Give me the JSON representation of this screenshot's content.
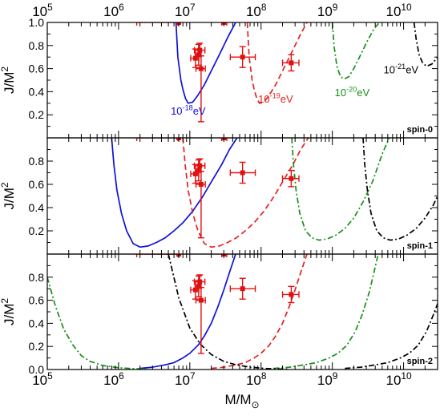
{
  "chart_data": {
    "type": "line",
    "layout": "three vertically stacked panels sharing a logarithmic x axis",
    "x_scale": "log",
    "xlim": [
      100000,
      30000000000
    ],
    "xlabel_base": "M/M",
    "xlabel_sub": "⊙",
    "ylabel_base": "J/M",
    "ylabel_sup": "2",
    "top_axis_labels": true,
    "x_tick_labels": [
      {
        "x": 100000,
        "exp": "5"
      },
      {
        "x": 1000000,
        "exp": "6"
      },
      {
        "x": 10000000,
        "exp": "7"
      },
      {
        "x": 100000000,
        "exp": "8"
      },
      {
        "x": 1000000000,
        "exp": "9"
      },
      {
        "x": 10000000000,
        "exp": "10"
      }
    ],
    "colors": {
      "1e-18": "#1010d8",
      "1e-19": "#e82020",
      "1e-20": "#189018",
      "1e-21": "#000000",
      "points": "#e01010"
    },
    "data_points": [
      {
        "x": 7000000,
        "y": 1.0,
        "xerr_low": 1800000,
        "xerr_high": 6800000
      },
      {
        "x": 30000000,
        "y": 1.0,
        "xerr_low": 28000000,
        "xerr_high": 33000000
      },
      {
        "x": 12000000,
        "y": 0.69,
        "xerr_low": 10300000,
        "xerr_high": 13400000,
        "yerr_low": 0.61,
        "yerr_high": 0.77
      },
      {
        "x": 13300000,
        "y": 0.72,
        "xerr_low": 11900000,
        "xerr_high": 14400000,
        "yerr_low": 0.63,
        "yerr_high": 0.81
      },
      {
        "x": 13800000,
        "y": 0.76,
        "xerr_low": 11600000,
        "xerr_high": 16300000,
        "yerr_low": 0.71,
        "yerr_high": 0.82
      },
      {
        "x": 14400000,
        "y": 0.6,
        "xerr_low": 12200000,
        "xerr_high": 16500000,
        "yerr_low": 0.14,
        "yerr_high": 0.71
      },
      {
        "x": 55000000,
        "y": 0.7,
        "xerr_low": 37000000,
        "xerr_high": 83000000,
        "yerr_low": 0.61,
        "yerr_high": 0.79
      },
      {
        "x": 265000000,
        "y": 0.65,
        "xerr_low": 200000000,
        "xerr_high": 340000000,
        "yerr_low": 0.58,
        "yerr_high": 0.72
      }
    ],
    "panels": [
      {
        "label": "spin-0",
        "ylim": [
          0,
          1.0
        ],
        "y_ticks": [
          0.2,
          0.4,
          0.6,
          0.8,
          1.0
        ],
        "y_tick_labels": [
          "0.2",
          "0.4",
          "0.6",
          "0.8",
          "1.0"
        ],
        "curve_labels": [
          {
            "mass": "1e-18",
            "base": "10",
            "exp": "-18",
            "unit": "eV",
            "x": 9500000,
            "y": 0.2
          },
          {
            "mass": "1e-19",
            "base": "10",
            "exp": "-19",
            "unit": "eV",
            "x": 160000000,
            "y": 0.305
          },
          {
            "mass": "1e-20",
            "base": "10",
            "exp": "-20",
            "unit": "eV",
            "x": 1900000000,
            "y": 0.36
          },
          {
            "mass": "1e-21",
            "base": "10",
            "exp": "-21",
            "unit": "eV",
            "x": 9200000000,
            "y": 0.56
          }
        ],
        "series": [
          {
            "mass": "1e-18",
            "style": "solid",
            "x": [
              6400000,
              6800000,
              7500000,
              8000000,
              8700000,
              9500000,
              11000000,
              13000000,
              16000000,
              20000000,
              26000000,
              34000000,
              44000000
            ],
            "y": [
              1.0,
              0.7,
              0.5,
              0.42,
              0.34,
              0.3,
              0.31,
              0.37,
              0.46,
              0.58,
              0.72,
              0.87,
              1.0
            ]
          },
          {
            "mass": "1e-19",
            "style": "dash",
            "x": [
              64000000,
              68000000,
              75000000,
              80000000,
              87000000,
              95000000,
              110000000,
              130000000,
              160000000,
              200000000,
              260000000,
              340000000,
              440000000
            ],
            "y": [
              1.0,
              0.7,
              0.5,
              0.42,
              0.34,
              0.3,
              0.31,
              0.37,
              0.46,
              0.58,
              0.72,
              0.87,
              1.0
            ]
          },
          {
            "mass": "1e-20",
            "style": "dashdot",
            "x": [
              1000000000,
              1060000000,
              1160000000,
              1300000000,
              1460000000,
              1700000000,
              2000000000,
              2450000000,
              3100000000,
              3900000000,
              4600000000
            ],
            "y": [
              1.0,
              0.79,
              0.62,
              0.53,
              0.51,
              0.53,
              0.6,
              0.71,
              0.84,
              0.95,
              1.0
            ]
          },
          {
            "mass": "1e-21",
            "style": "dashdot",
            "x": [
              14000000000,
              15000000000,
              16500000000,
              18500000000,
              21000000000,
              25000000000,
              30000000000
            ],
            "y": [
              1.0,
              0.86,
              0.72,
              0.65,
              0.62,
              0.64,
              0.7
            ]
          }
        ]
      },
      {
        "label": "spin-1",
        "ylim": [
          0,
          1.0
        ],
        "y_ticks": [
          0.2,
          0.4,
          0.6,
          0.8
        ],
        "y_tick_labels": [
          "0.2",
          "0.4",
          "0.6",
          "0.8"
        ],
        "curve_labels": [],
        "series": [
          {
            "mass": "1e-18",
            "style": "solid",
            "x": [
              800000,
              860000,
              950000,
              1100000,
              1300000,
              1600000,
              2000000,
              2600000,
              3400000,
              4500000,
              6000000,
              8000000,
              11000000,
              15000000,
              20000000,
              28000000,
              36000000,
              46000000
            ],
            "y": [
              1.0,
              0.77,
              0.55,
              0.35,
              0.2,
              0.09,
              0.06,
              0.07,
              0.1,
              0.14,
              0.2,
              0.27,
              0.37,
              0.49,
              0.62,
              0.77,
              0.9,
              1.0
            ]
          },
          {
            "mass": "1e-19",
            "style": "dash",
            "x": [
              8000000,
              8600000,
              9500000,
              11000000,
              13000000,
              16000000,
              20000000,
              26000000,
              34000000,
              45000000,
              60000000,
              80000000,
              110000000,
              150000000,
              200000000,
              280000000,
              360000000,
              460000000
            ],
            "y": [
              1.0,
              0.77,
              0.55,
              0.35,
              0.2,
              0.09,
              0.06,
              0.07,
              0.1,
              0.14,
              0.2,
              0.27,
              0.37,
              0.49,
              0.62,
              0.77,
              0.9,
              1.0
            ]
          },
          {
            "mass": "1e-20",
            "style": "dashdot",
            "x": [
              270000000,
              285000000,
              310000000,
              350000000,
              420000000,
              520000000,
              650000000,
              850000000,
              1100000000,
              1500000000,
              2000000000,
              2700000000,
              3700000000,
              5000000000,
              6300000000
            ],
            "y": [
              1.0,
              0.77,
              0.55,
              0.35,
              0.2,
              0.14,
              0.12,
              0.13,
              0.16,
              0.22,
              0.31,
              0.45,
              0.63,
              0.86,
              1.0
            ]
          },
          {
            "mass": "1e-21",
            "style": "dashdot",
            "x": [
              2700000000,
              2850000000,
              3100000000,
              3500000000,
              4200000000,
              5200000000,
              6500000000,
              8500000000,
              11000000000,
              15000000000,
              20000000000,
              26000000000,
              30000000000
            ],
            "y": [
              1.0,
              0.77,
              0.55,
              0.35,
              0.2,
              0.14,
              0.12,
              0.13,
              0.16,
              0.22,
              0.31,
              0.42,
              0.5
            ]
          }
        ]
      },
      {
        "label": "spin-2",
        "ylim": [
          0,
          1.0
        ],
        "y_ticks": [
          0.2,
          0.4,
          0.6,
          0.8
        ],
        "y_tick_labels": [
          "0.2",
          "0.4",
          "0.6",
          "0.8"
        ],
        "curve_labels": [],
        "series": [
          {
            "mass": "1e-18",
            "style": "solid",
            "x": [
              2000000,
              3000000,
              4500000,
              6000000,
              8000000,
              10000000,
              13000000,
              16000000,
              20000000,
              25000000,
              30000000,
              36000000,
              44000000
            ],
            "y": [
              0.01,
              0.02,
              0.04,
              0.06,
              0.1,
              0.14,
              0.21,
              0.29,
              0.4,
              0.55,
              0.69,
              0.84,
              1.0
            ]
          },
          {
            "mass": "1e-19",
            "style": "dash",
            "x": [
              20000000,
              30000000,
              45000000,
              60000000,
              80000000,
              100000000,
              130000000,
              160000000,
              200000000,
              250000000,
              300000000,
              360000000,
              440000000
            ],
            "y": [
              0.01,
              0.02,
              0.04,
              0.06,
              0.1,
              0.14,
              0.21,
              0.29,
              0.4,
              0.55,
              0.69,
              0.84,
              1.0
            ]
          },
          {
            "mass": "1e-20",
            "style": "dashdot",
            "x": [
              100000,
              130000,
              170000,
              230000,
              300000,
              400000,
              600000,
              1000000,
              1500000,
              2500000
            ],
            "y": [
              0.8,
              0.55,
              0.35,
              0.21,
              0.12,
              0.07,
              0.035,
              0.015,
              0.008,
              0.004
            ]
          },
          {
            "mass": "1e-20",
            "style": "dashdot",
            "x": [
              150000000,
              250000000,
              400000000,
              600000000,
              900000000,
              1200000000,
              1600000000,
              2100000000,
              2600000000,
              3300000000,
              4400000000
            ],
            "y": [
              0.01,
              0.02,
              0.04,
              0.06,
              0.1,
              0.14,
              0.21,
              0.33,
              0.47,
              0.67,
              1.0
            ]
          },
          {
            "mass": "1e-21",
            "style": "dashdot",
            "x": [
              5000000,
              7000000,
              10000000,
              14000000,
              20000000,
              30000000,
              45000000,
              70000000,
              110000000,
              170000000,
              250000000
            ],
            "y": [
              1.0,
              0.62,
              0.36,
              0.22,
              0.13,
              0.07,
              0.04,
              0.02,
              0.01,
              0.005,
              0.003
            ]
          },
          {
            "mass": "1e-21",
            "style": "dashdot",
            "x": [
              1500000000,
              2500000000,
              4000000000,
              6000000000,
              9000000000,
              12000000000,
              16000000000,
              21000000000,
              26000000000,
              30000000000
            ],
            "y": [
              0.01,
              0.02,
              0.04,
              0.06,
              0.1,
              0.14,
              0.21,
              0.33,
              0.47,
              0.57
            ]
          }
        ]
      }
    ]
  }
}
